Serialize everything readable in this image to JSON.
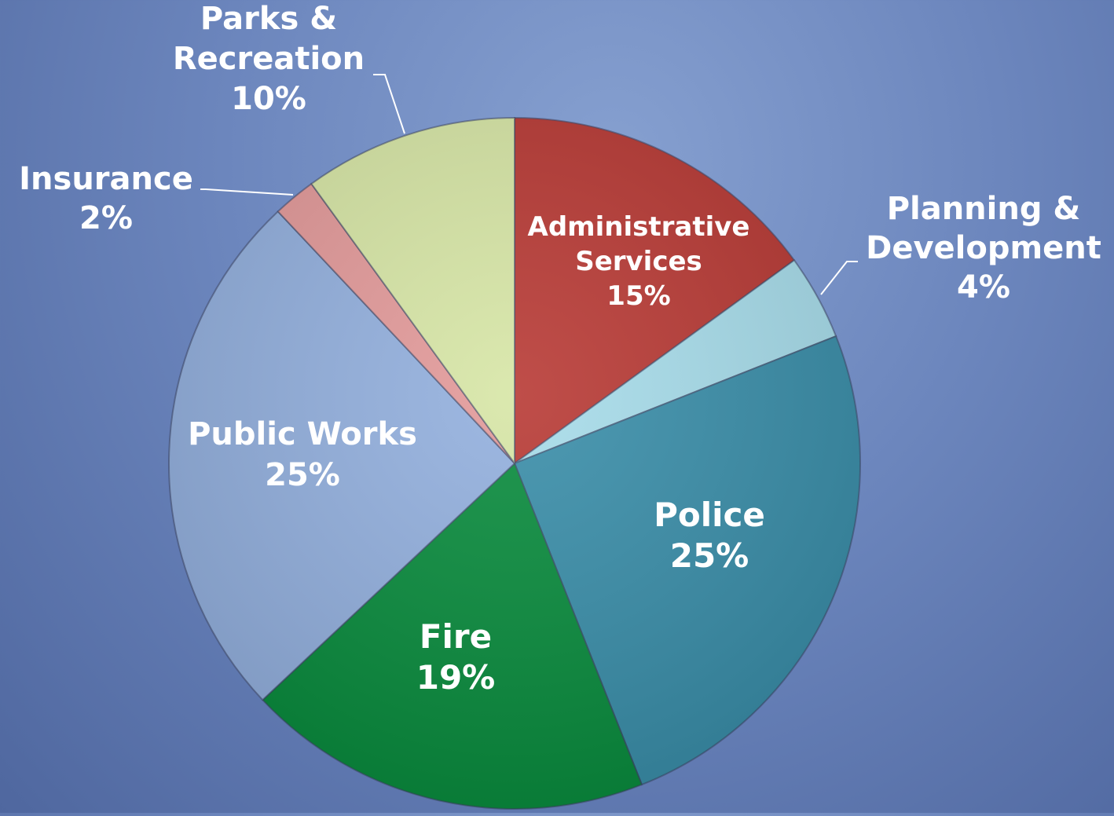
{
  "chart_data": {
    "type": "pie",
    "slices": [
      {
        "label_lines": [
          "Administrative",
          "Services"
        ],
        "pct_text": "15%",
        "value": 15,
        "color": "#b83a35"
      },
      {
        "label_lines": [
          "Planning &",
          "Development"
        ],
        "pct_text": "4%",
        "value": 4,
        "color": "#a7dcea"
      },
      {
        "label_lines": [
          "Police"
        ],
        "pct_text": "25%",
        "value": 25,
        "color": "#3a8ea9"
      },
      {
        "label_lines": [
          "Fire"
        ],
        "pct_text": "19%",
        "value": 19,
        "color": "#0a8c3e"
      },
      {
        "label_lines": [
          "Public Works"
        ],
        "pct_text": "25%",
        "value": 25,
        "color": "#93b0de"
      },
      {
        "label_lines": [
          "Insurance"
        ],
        "pct_text": "2%",
        "value": 2,
        "color": "#e39a9a"
      },
      {
        "label_lines": [
          "Parks &",
          "Recreation"
        ],
        "pct_text": "10%",
        "value": 10,
        "color": "#d7e6a6"
      }
    ]
  }
}
